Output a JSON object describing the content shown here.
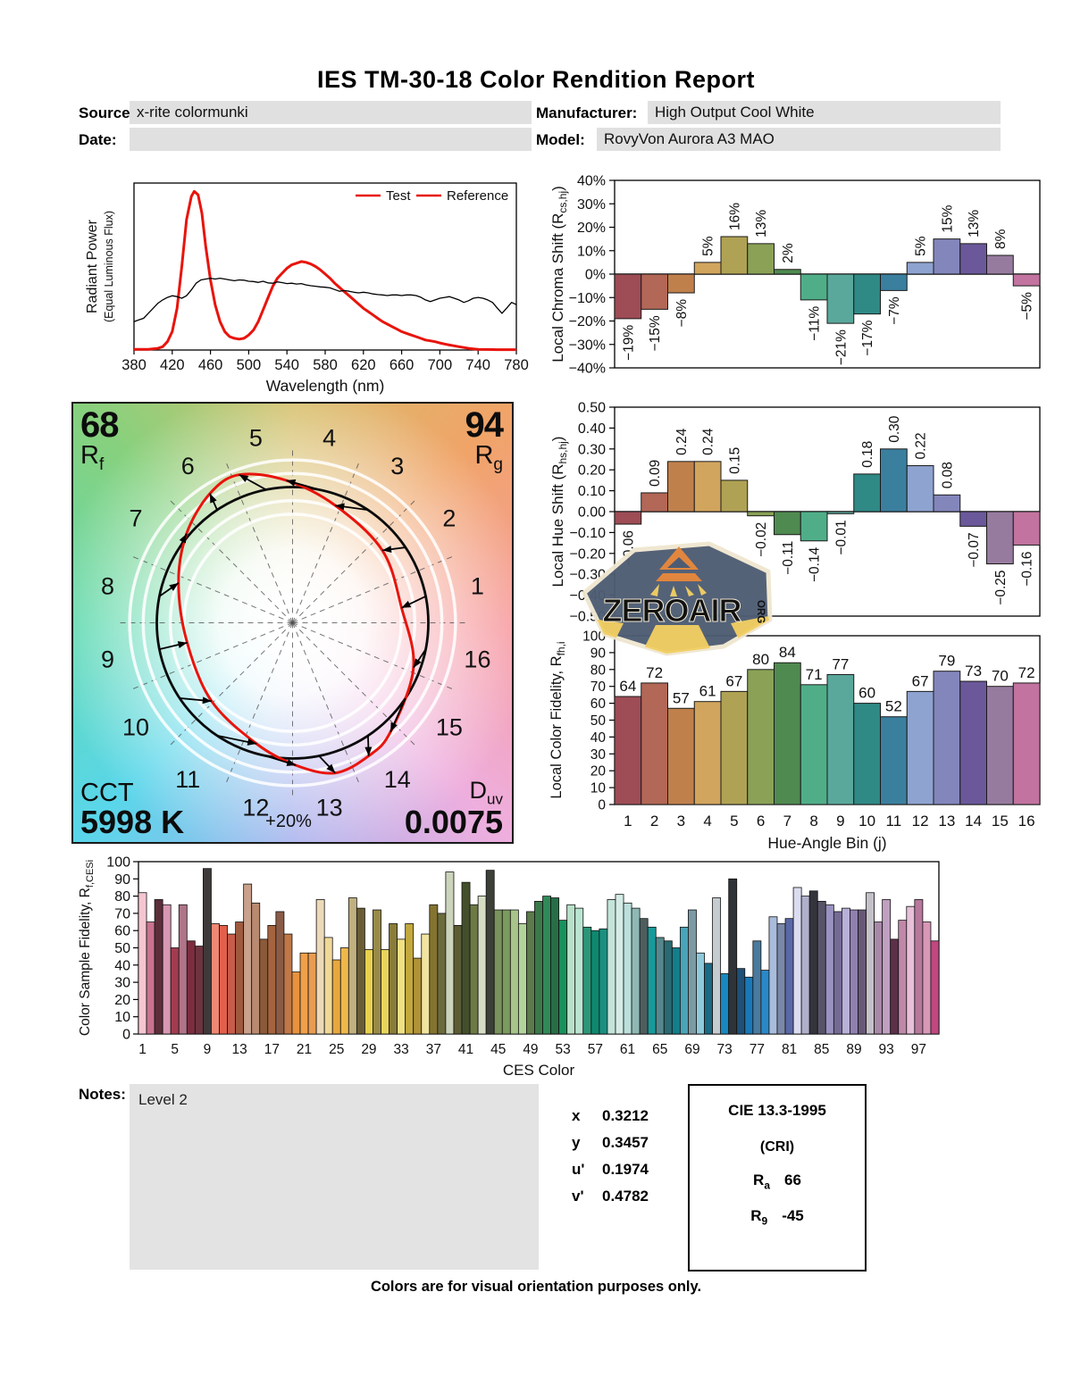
{
  "title": "IES TM-30-18 Color Rendition Report",
  "header": {
    "source_label": "Source:",
    "source_value": "x-rite colormunki",
    "manufacturer_label": "Manufacturer:",
    "manufacturer_value": "High Output Cool White",
    "date_label": "Date:",
    "date_value": "",
    "model_label": "Model:",
    "model_value": "RovyVon Aurora A3 MAO"
  },
  "notes": {
    "label": "Notes:",
    "value": "Level 2"
  },
  "footer": "Colors are for visual orientation purposes only.",
  "chromaticity": {
    "rows": [
      {
        "label": "x",
        "value": "0.3212"
      },
      {
        "label": "y",
        "value": "0.3457"
      },
      {
        "label": "u'",
        "value": "0.1974"
      },
      {
        "label": "v'",
        "value": "0.4782"
      }
    ]
  },
  "cri_box": {
    "title": "CIE 13.3-1995",
    "subtitle": "(CRI)",
    "rows": [
      {
        "letter": "R",
        "sub": "a",
        "value": "66"
      },
      {
        "letter": "R",
        "sub": "9",
        "value": "-45"
      }
    ]
  },
  "cvg": {
    "rf_value": "68",
    "rf_letter": "R",
    "rf_sub": "f",
    "rg_value": "94",
    "rg_letter": "R",
    "rg_sub": "g",
    "cct_label": "CCT",
    "cct_value": "5998 K",
    "duv_letter": "D",
    "duv_sub": "uv",
    "duv_value": "0.0075",
    "ring_label": "+20%",
    "bins": [
      1,
      2,
      3,
      4,
      5,
      6,
      7,
      8,
      9,
      10,
      11,
      12,
      13,
      14,
      15,
      16
    ]
  },
  "watermark": {
    "text": "ZEROAIR",
    "suffix": "ORG"
  },
  "colors": {
    "accent_red": "#e8140c",
    "box_gray": "#e0e0e0",
    "bin_colors": [
      "#9e4c55",
      "#b26757",
      "#c0804c",
      "#d2a55e",
      "#b0a254",
      "#8aa156",
      "#4f8a50",
      "#4fae88",
      "#5aa89b",
      "#2f8985",
      "#3b7f9e",
      "#8ea3cf",
      "#8386bb",
      "#6b589a",
      "#977b9f",
      "#c2739f"
    ]
  },
  "chart_data": [
    {
      "id": "spectral",
      "type": "line",
      "xlabel": "Wavelength (nm)",
      "ylabel": "Radiant Power",
      "ylabel2": "(Equal Luminous Flux)",
      "xlim": [
        380,
        780
      ],
      "xticks": [
        380,
        420,
        460,
        500,
        540,
        580,
        620,
        660,
        700,
        740,
        780
      ],
      "legend": [
        {
          "label": "Test",
          "text_color": "#e8140c",
          "line_color": "#e8140c"
        },
        {
          "label": "Reference",
          "text_color": "#000000",
          "line_color": "#e8140c"
        }
      ],
      "series": [
        {
          "name": "Test",
          "color": "#e8140c",
          "width": 3,
          "x": [
            380,
            395,
            405,
            410,
            415,
            420,
            425,
            430,
            435,
            440,
            443,
            447,
            451,
            455,
            460,
            465,
            470,
            475,
            480,
            485,
            490,
            495,
            500,
            505,
            510,
            515,
            520,
            525,
            530,
            535,
            540,
            545,
            550,
            555,
            560,
            565,
            570,
            575,
            580,
            585,
            590,
            595,
            600,
            605,
            610,
            615,
            620,
            625,
            630,
            635,
            640,
            645,
            650,
            655,
            660,
            665,
            670,
            675,
            680,
            685,
            690,
            695,
            700,
            705,
            710,
            715,
            720,
            725,
            730,
            735,
            740,
            750,
            760,
            780
          ],
          "y": [
            0.004,
            0.004,
            0.01,
            0.02,
            0.05,
            0.11,
            0.25,
            0.5,
            0.78,
            0.92,
            0.95,
            0.93,
            0.82,
            0.62,
            0.42,
            0.27,
            0.17,
            0.11,
            0.08,
            0.07,
            0.065,
            0.07,
            0.09,
            0.12,
            0.17,
            0.24,
            0.31,
            0.38,
            0.43,
            0.46,
            0.49,
            0.51,
            0.52,
            0.53,
            0.525,
            0.515,
            0.5,
            0.48,
            0.455,
            0.43,
            0.4,
            0.375,
            0.35,
            0.325,
            0.3,
            0.275,
            0.25,
            0.23,
            0.21,
            0.19,
            0.17,
            0.155,
            0.14,
            0.125,
            0.11,
            0.1,
            0.09,
            0.08,
            0.07,
            0.06,
            0.055,
            0.05,
            0.042,
            0.036,
            0.03,
            0.025,
            0.02,
            0.015,
            0.01,
            0.007,
            0.004,
            0.003,
            0.002,
            0.002
          ]
        },
        {
          "name": "Reference",
          "color": "#000000",
          "width": 1.3,
          "x_start": 380,
          "x_step": 5,
          "y": [
            0.17,
            0.18,
            0.19,
            0.22,
            0.25,
            0.28,
            0.3,
            0.315,
            0.325,
            0.32,
            0.31,
            0.325,
            0.36,
            0.4,
            0.42,
            0.425,
            0.43,
            0.425,
            0.43,
            0.425,
            0.42,
            0.415,
            0.42,
            0.418,
            0.412,
            0.41,
            0.405,
            0.412,
            0.402,
            0.4,
            0.408,
            0.404,
            0.398,
            0.4,
            0.395,
            0.398,
            0.39,
            0.385,
            0.382,
            0.378,
            0.376,
            0.372,
            0.362,
            0.352,
            0.356,
            0.352,
            0.346,
            0.342,
            0.346,
            0.342,
            0.336,
            0.332,
            0.33,
            0.326,
            0.33,
            0.33,
            0.326,
            0.33,
            0.33,
            0.326,
            0.316,
            0.3,
            0.29,
            0.3,
            0.31,
            0.315,
            0.32,
            0.31,
            0.3,
            0.285,
            0.295,
            0.31,
            0.315,
            0.31,
            0.3,
            0.285,
            0.252,
            0.22,
            0.252,
            0.285,
            0.272
          ]
        }
      ]
    },
    {
      "id": "chroma",
      "type": "bar",
      "ylabel_main": "Local Chroma Shift (R",
      "ylabel_sub": "cs,hj",
      "ylabel_close": ")",
      "ylim": [
        -40,
        40
      ],
      "ytick_step": 10,
      "unit": "%",
      "categories": [
        1,
        2,
        3,
        4,
        5,
        6,
        7,
        8,
        9,
        10,
        11,
        12,
        13,
        14,
        15,
        16
      ],
      "values": [
        -19,
        -15,
        -8,
        5,
        16,
        13,
        2,
        -11,
        -21,
        -17,
        -7,
        5,
        15,
        13,
        8,
        -5
      ]
    },
    {
      "id": "hue",
      "type": "bar",
      "ylabel_main": "Local Hue Shift (R",
      "ylabel_sub": "hs,hj",
      "ylabel_close": ")",
      "ylim": [
        -0.5,
        0.5
      ],
      "ytick_step": 0.1,
      "unit": "",
      "categories": [
        1,
        2,
        3,
        4,
        5,
        6,
        7,
        8,
        9,
        10,
        11,
        12,
        13,
        14,
        15,
        16
      ],
      "values": [
        -0.06,
        0.09,
        0.24,
        0.24,
        0.15,
        -0.02,
        -0.11,
        -0.14,
        -0.01,
        0.18,
        0.3,
        0.22,
        0.08,
        -0.07,
        -0.25,
        -0.16
      ]
    },
    {
      "id": "fidelity",
      "type": "bar",
      "ylabel_main": "Local Color Fidelity, R",
      "ylabel_sub": "fh,i",
      "xlabel": "Hue-Angle Bin (j)",
      "ylim": [
        0,
        100
      ],
      "ytick_step": 10,
      "categories": [
        1,
        2,
        3,
        4,
        5,
        6,
        7,
        8,
        9,
        10,
        11,
        12,
        13,
        14,
        15,
        16
      ],
      "values": [
        64,
        72,
        57,
        61,
        67,
        80,
        84,
        71,
        77,
        60,
        52,
        67,
        79,
        73,
        70,
        72
      ]
    },
    {
      "id": "ces",
      "type": "bar",
      "ylabel_main": "Color Sample Fidelity, R",
      "ylabel_sub": "f,CESi",
      "xlabel": "CES Color",
      "ylim": [
        0,
        100
      ],
      "ytick_step": 10,
      "xticks": [
        1,
        5,
        9,
        13,
        17,
        21,
        25,
        29,
        33,
        37,
        41,
        45,
        49,
        53,
        57,
        61,
        65,
        69,
        73,
        77,
        81,
        85,
        89,
        93,
        97
      ],
      "values": [
        82,
        65,
        78,
        75,
        50,
        75,
        54,
        51,
        96,
        64,
        63,
        58,
        65,
        87,
        76,
        55,
        63,
        71,
        58,
        36,
        47,
        47,
        78,
        56,
        43,
        50,
        79,
        73,
        49,
        72,
        49,
        64,
        55,
        64,
        44,
        58,
        75,
        70,
        94,
        63,
        88,
        75,
        80,
        95,
        72,
        72,
        72,
        64,
        71,
        77,
        80,
        79,
        66,
        75,
        73,
        62,
        60,
        61,
        78,
        81,
        76,
        73,
        67,
        62,
        56,
        54,
        50,
        62,
        72,
        47,
        41,
        79,
        35,
        90,
        38,
        33,
        54,
        37,
        68,
        64,
        67,
        85,
        80,
        83,
        77,
        75,
        71,
        73,
        72,
        72,
        82,
        65,
        78,
        55,
        66,
        74,
        78,
        65,
        54
      ],
      "bar_colors": [
        "#f4c6d1",
        "#ca7391",
        "#5c2e3a",
        "#d898b2",
        "#a13c50",
        "#b07488",
        "#7c2d3f",
        "#6d3440",
        "#3f3a3a",
        "#f08873",
        "#e2604b",
        "#c75c4b",
        "#9e5a3f",
        "#c9a18c",
        "#b98a70",
        "#8a5a3a",
        "#a5643f",
        "#8a5c48",
        "#c07848",
        "#e8923e",
        "#f0a04a",
        "#e89c50",
        "#ecd9b8",
        "#f0d898",
        "#e8a83e",
        "#f0b84a",
        "#c0b080",
        "#6a5d36",
        "#e8d04e",
        "#988a48",
        "#e8d45c",
        "#8a7d3a",
        "#f0e083",
        "#c2a83e",
        "#b09238",
        "#f0e4a0",
        "#847430",
        "#6b6b3c",
        "#ccd4bc",
        "#5c5c34",
        "#44502c",
        "#6e7a46",
        "#d6ddc4",
        "#3c4038",
        "#79935c",
        "#7b9a5e",
        "#a8c48a",
        "#b2d49a",
        "#5c7a4a",
        "#3a7a4a",
        "#2f8a58",
        "#276e46",
        "#18915c",
        "#b8e0c8",
        "#bae4d2",
        "#2a9878",
        "#0f8870",
        "#1a9080",
        "#c4e4da",
        "#d4ece6",
        "#bce0dc",
        "#8fb8b4",
        "#4e5e5e",
        "#199a9a",
        "#55888c",
        "#2a6a72",
        "#137e8c",
        "#4aa4b8",
        "#7b9aa4",
        "#8ecadc",
        "#1a6a84",
        "#c4ccd0",
        "#1888c0",
        "#303438",
        "#1e5078",
        "#1878b8",
        "#4a7a9e",
        "#2a88c8",
        "#aabcdc",
        "#7a88a8",
        "#5a68a8",
        "#dcdcf0",
        "#b0b0cc",
        "#34343c",
        "#585468",
        "#9a92c0",
        "#746a94",
        "#b8b0d8",
        "#9080b0",
        "#685878",
        "#c4c0c8",
        "#a888a8",
        "#c0a0c0",
        "#5c3048",
        "#c088a8",
        "#e8c0d8",
        "#b8789c",
        "#d898b8",
        "#c04880"
      ]
    },
    {
      "id": "cvg",
      "type": "color-vector-graphic",
      "rf": 68,
      "rg": 94,
      "cct_k": 5998,
      "duv": 0.0075,
      "chroma_shift_pct": [
        -19,
        -15,
        -8,
        5,
        16,
        13,
        2,
        -11,
        -21,
        -17,
        -7,
        5,
        15,
        13,
        8,
        -5
      ],
      "hue_shift": [
        -0.06,
        0.09,
        0.24,
        0.24,
        0.15,
        -0.02,
        -0.11,
        -0.14,
        -0.01,
        0.18,
        0.3,
        0.22,
        0.08,
        -0.07,
        -0.25,
        -0.16
      ]
    }
  ]
}
